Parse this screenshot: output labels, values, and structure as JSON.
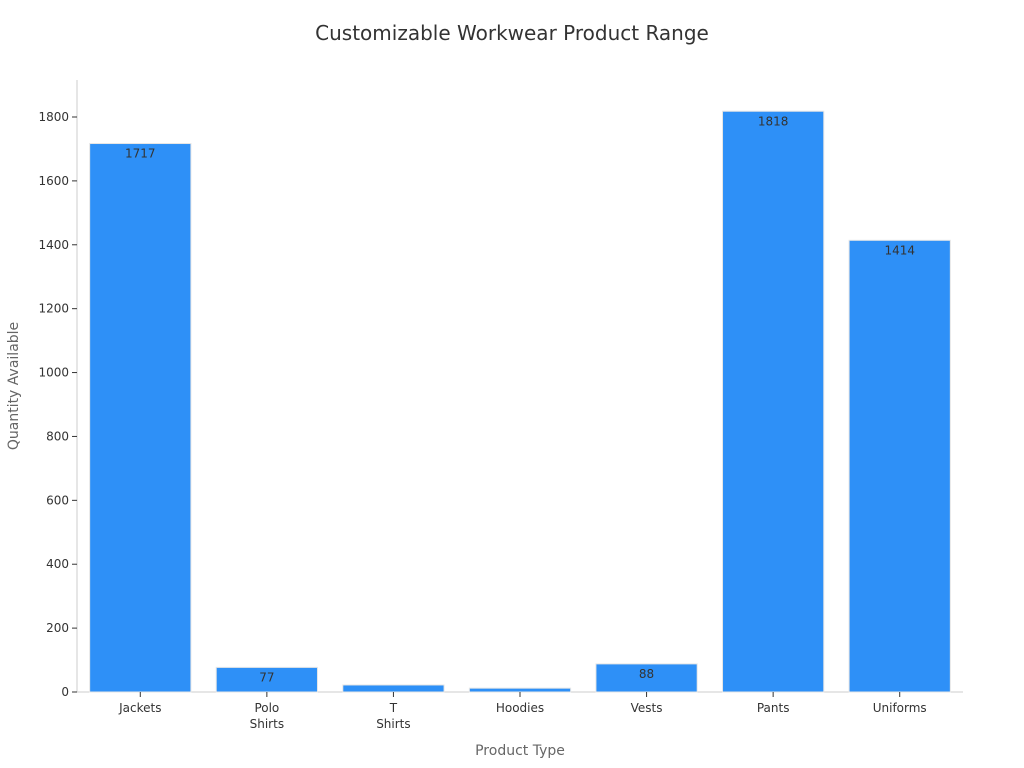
{
  "chart_data": {
    "type": "bar",
    "title": "Customizable Workwear Product Range",
    "xlabel": "Product Type",
    "ylabel": "Quantity Available",
    "categories": [
      [
        "Jackets"
      ],
      [
        "Polo",
        "Shirts"
      ],
      [
        "T",
        "Shirts"
      ],
      [
        "Hoodies"
      ],
      [
        "Vests"
      ],
      [
        "Pants"
      ],
      [
        "Uniforms"
      ]
    ],
    "values": [
      1717,
      77,
      22,
      12,
      88,
      1818,
      1414
    ],
    "data_labels": [
      "1717",
      "77",
      "",
      "",
      "88",
      "1818",
      "1414"
    ],
    "ylim": [
      0,
      1900
    ],
    "yticks": [
      0,
      200,
      400,
      600,
      800,
      1000,
      1200,
      1400,
      1600,
      1800
    ],
    "grid": false,
    "legend": "none",
    "bar_color": "#2e90f7"
  }
}
